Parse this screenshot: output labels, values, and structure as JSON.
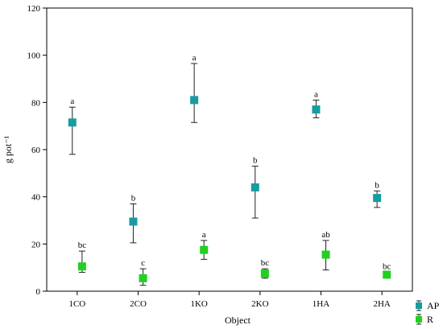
{
  "chart_data": {
    "type": "scatter",
    "xlabel": "Object",
    "ylabel": "g pot⁻¹",
    "categories": [
      "1CO",
      "2CO",
      "1KO",
      "2KO",
      "1HA",
      "2HA"
    ],
    "ylim": [
      0,
      120
    ],
    "yticks": [
      "0",
      "20",
      "40",
      "60",
      "80",
      "100",
      "120"
    ],
    "grid": false,
    "legend_position": "bottom-right",
    "series": [
      {
        "name": "AP",
        "color": "#179ca0",
        "values": [
          71.5,
          29.5,
          81,
          44,
          77,
          39.5
        ],
        "err_low": [
          58,
          20.5,
          71.5,
          31,
          73.5,
          35.5
        ],
        "err_high": [
          78,
          37,
          96.5,
          53,
          81,
          42.5
        ],
        "labels": [
          "a",
          "b",
          "a",
          "b",
          "a",
          "b"
        ]
      },
      {
        "name": "R",
        "color": "#21d021",
        "values": [
          10.5,
          5.5,
          17.5,
          7.5,
          15.5,
          7
        ],
        "err_low": [
          8,
          2.5,
          13.5,
          5.5,
          9,
          6
        ],
        "err_high": [
          17,
          9.5,
          21.5,
          9.5,
          21.5,
          8
        ],
        "labels": [
          "bc",
          "c",
          "a",
          "bc",
          "ab",
          "bc"
        ]
      }
    ]
  }
}
